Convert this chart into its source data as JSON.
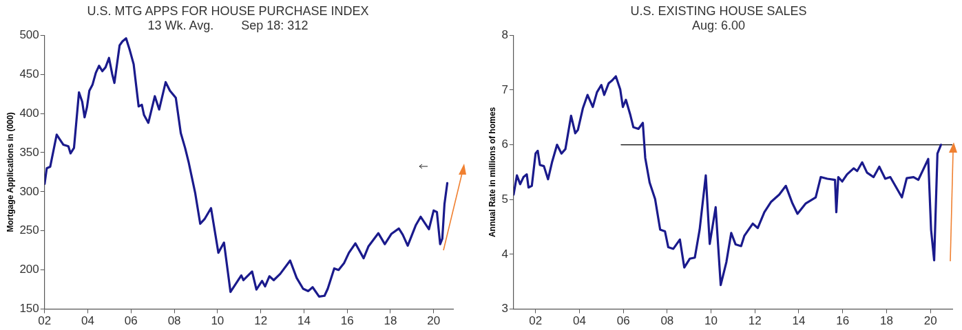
{
  "chart_data": [
    {
      "type": "line",
      "title": "U.S. MTG APPS FOR HOUSE PURCHASE INDEX",
      "subtitle": "13 Wk. Avg.        Sep 18: 312",
      "ylabel": "Mortgage Applications in (000)",
      "xlim": [
        2002,
        2020.9
      ],
      "xticks": [
        {
          "value": 2002,
          "label": "02"
        },
        {
          "value": 2004,
          "label": "04"
        },
        {
          "value": 2006,
          "label": "06"
        },
        {
          "value": 2008,
          "label": "08"
        },
        {
          "value": 2010,
          "label": "10"
        },
        {
          "value": 2012,
          "label": "12"
        },
        {
          "value": 2014,
          "label": "14"
        },
        {
          "value": 2016,
          "label": "16"
        },
        {
          "value": 2018,
          "label": "18"
        },
        {
          "value": 2020,
          "label": "20"
        }
      ],
      "ylim": [
        150,
        500
      ],
      "yticks": [
        150,
        200,
        250,
        300,
        350,
        400,
        450,
        500
      ],
      "grid": false,
      "legend": false,
      "series": [
        {
          "color": "#1a1a8c",
          "x": [
            2002.0,
            2002.1,
            2002.26,
            2002.56,
            2002.7,
            2002.87,
            2003.1,
            2003.2,
            2003.36,
            2003.59,
            2003.74,
            2003.85,
            2003.96,
            2004.07,
            2004.22,
            2004.37,
            2004.52,
            2004.67,
            2004.82,
            2004.98,
            2005.13,
            2005.23,
            2005.47,
            2005.6,
            2005.77,
            2005.94,
            2006.12,
            2006.35,
            2006.5,
            2006.6,
            2006.8,
            2007.1,
            2007.3,
            2007.6,
            2007.8,
            2008.07,
            2008.3,
            2008.5,
            2008.67,
            2008.97,
            2009.2,
            2009.4,
            2009.7,
            2010.04,
            2010.3,
            2010.6,
            2011.1,
            2011.2,
            2011.6,
            2011.8,
            2012.06,
            2012.2,
            2012.4,
            2012.6,
            2012.9,
            2013.36,
            2013.66,
            2013.96,
            2014.2,
            2014.4,
            2014.7,
            2014.95,
            2015.1,
            2015.4,
            2015.6,
            2015.86,
            2016.08,
            2016.38,
            2016.76,
            2016.98,
            2017.44,
            2017.74,
            2018.04,
            2018.39,
            2018.57,
            2018.8,
            2019.17,
            2019.4,
            2019.78,
            2020.0,
            2020.15,
            2020.3,
            2020.4,
            2020.5,
            2020.63
          ],
          "values": [
            310,
            330,
            332,
            373,
            367,
            360,
            358,
            349,
            356,
            427,
            415,
            395,
            408,
            429,
            437,
            452,
            461,
            454,
            459,
            471,
            450,
            439,
            487,
            492,
            496,
            481,
            463,
            409,
            411,
            398,
            388,
            422,
            405,
            440,
            429,
            420,
            375,
            356,
            337,
            298,
            259,
            265,
            279,
            222,
            235,
            172,
            193,
            187,
            198,
            175,
            186,
            179,
            192,
            187,
            195,
            212,
            190,
            176,
            173,
            178,
            166,
            167,
            176,
            202,
            200,
            209,
            222,
            234,
            215,
            230,
            247,
            233,
            246,
            253,
            245,
            231,
            257,
            268,
            252,
            276,
            274,
            233,
            240,
            284,
            311
          ]
        }
      ]
    },
    {
      "type": "line",
      "title": "U.S. EXISTING HOUSE SALES",
      "subtitle": "Aug: 6.00",
      "ylabel": "Annual Rate in millions of homes",
      "xlim": [
        2001,
        2021
      ],
      "xticks": [
        {
          "value": 2002,
          "label": "02"
        },
        {
          "value": 2004,
          "label": "04"
        },
        {
          "value": 2006,
          "label": "06"
        },
        {
          "value": 2008,
          "label": "08"
        },
        {
          "value": 2010,
          "label": "10"
        },
        {
          "value": 2012,
          "label": "12"
        },
        {
          "value": 2014,
          "label": "14"
        },
        {
          "value": 2016,
          "label": "16"
        },
        {
          "value": 2018,
          "label": "18"
        },
        {
          "value": 2020,
          "label": "20"
        }
      ],
      "ylim": [
        3,
        8
      ],
      "yticks": [
        3,
        4,
        5,
        6,
        7,
        8
      ],
      "grid": false,
      "legend": false,
      "series": [
        {
          "color": "#1a1a8c",
          "x": [
            2001.0,
            2001.15,
            2001.3,
            2001.45,
            2001.6,
            2001.68,
            2001.83,
            2002.0,
            2002.1,
            2002.2,
            2002.38,
            2002.57,
            2002.75,
            2002.98,
            2003.18,
            2003.36,
            2003.62,
            2003.81,
            2003.93,
            2004.16,
            2004.37,
            2004.61,
            2004.8,
            2005.0,
            2005.13,
            2005.33,
            2005.48,
            2005.66,
            2005.86,
            2005.98,
            2006.12,
            2006.31,
            2006.46,
            2006.69,
            2006.89,
            2007.0,
            2007.2,
            2007.45,
            2007.68,
            2007.9,
            2008.05,
            2008.28,
            2008.58,
            2008.78,
            2009.03,
            2009.26,
            2009.48,
            2009.76,
            2009.94,
            2010.21,
            2010.44,
            2010.7,
            2010.92,
            2011.12,
            2011.37,
            2011.52,
            2011.9,
            2012.13,
            2012.43,
            2012.74,
            2013.11,
            2013.41,
            2013.71,
            2013.94,
            2014.32,
            2014.77,
            2015.0,
            2015.3,
            2015.65,
            2015.71,
            2015.8,
            2015.98,
            2016.2,
            2016.5,
            2016.66,
            2016.89,
            2017.11,
            2017.41,
            2017.67,
            2017.94,
            2018.17,
            2018.7,
            2018.92,
            2019.23,
            2019.45,
            2019.9,
            2020.03,
            2020.17,
            2020.32,
            2020.48
          ],
          "values": [
            5.09,
            5.44,
            5.28,
            5.41,
            5.46,
            5.22,
            5.25,
            5.84,
            5.89,
            5.63,
            5.61,
            5.37,
            5.68,
            6.0,
            5.84,
            5.92,
            6.53,
            6.21,
            6.27,
            6.67,
            6.91,
            6.69,
            6.96,
            7.09,
            6.91,
            7.12,
            7.17,
            7.25,
            7.01,
            6.69,
            6.82,
            6.56,
            6.32,
            6.29,
            6.4,
            5.76,
            5.31,
            5.01,
            4.45,
            4.42,
            4.13,
            4.1,
            4.27,
            3.76,
            3.92,
            3.94,
            4.45,
            5.44,
            4.19,
            4.86,
            3.44,
            3.86,
            4.39,
            4.18,
            4.15,
            4.34,
            4.56,
            4.48,
            4.77,
            4.96,
            5.09,
            5.25,
            4.93,
            4.74,
            4.93,
            5.04,
            5.41,
            5.38,
            5.36,
            4.77,
            5.41,
            5.33,
            5.46,
            5.57,
            5.52,
            5.68,
            5.49,
            5.41,
            5.6,
            5.38,
            5.41,
            5.04,
            5.39,
            5.41,
            5.36,
            5.74,
            4.45,
            3.89,
            5.84,
            6.0
          ]
        },
        {
          "type": "line",
          "color": "#000000",
          "x": [
            2005.9,
            2021
          ],
          "values": [
            6,
            6
          ]
        }
      ]
    }
  ]
}
